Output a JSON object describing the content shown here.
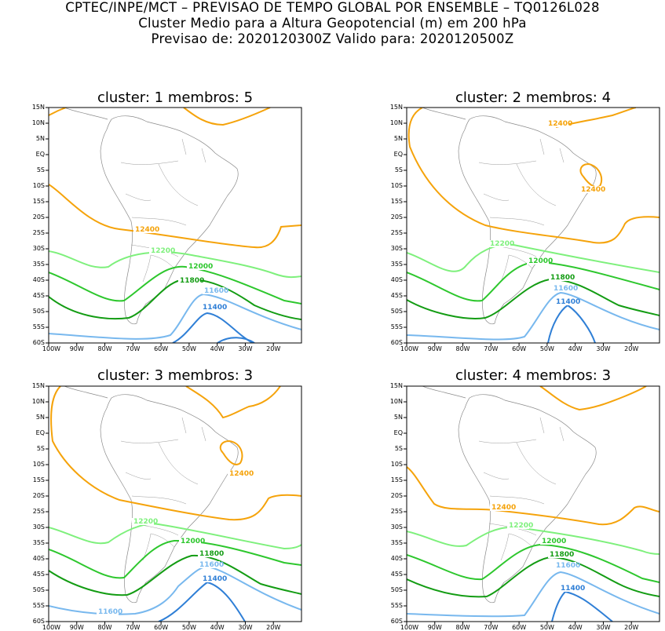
{
  "header": {
    "line1": "CPTEC/INPE/MCT – PREVISAO DE TEMPO GLOBAL POR ENSEMBLE – TQ0126L028",
    "line2": "Cluster Medio para a Altura Geopotencial (m) em 200 hPa",
    "line3": "Previsao de: 2020120300Z   Valido para: 2020120500Z"
  },
  "axes": {
    "lat_labels": [
      "15N",
      "10N",
      "5N",
      "EQ",
      "5S",
      "10S",
      "15S",
      "20S",
      "25S",
      "30S",
      "35S",
      "40S",
      "45S",
      "50S",
      "55S",
      "60S"
    ],
    "lon_labels": [
      "100W",
      "90W",
      "80W",
      "70W",
      "60W",
      "50W",
      "40W",
      "30W",
      "20W"
    ]
  },
  "colors": {
    "12400": "#f5a30b",
    "12200": "#7ef07c",
    "12000": "#2dc72d",
    "11800": "#139c13",
    "11600": "#78b8ee",
    "11400": "#2f7fd6"
  },
  "panels": [
    {
      "title": "cluster: 1   membros: 5",
      "contours": [
        {
          "level": "12400",
          "paths": [
            "M0,10 L12,4 L22,0",
            "M0,98 C20,110 50,150 90,155 C150,162 220,175 262,178 C280,180 290,170 296,152 L322,150",
            "M172,0 C185,10 200,22 222,22 C240,18 260,10 282,0"
          ],
          "labels": [
            {
              "text": "12400",
              "x": 110,
              "y": 158
            }
          ]
        },
        {
          "level": "12200",
          "paths": [
            "M0,183 C30,188 50,208 76,203 C100,185 140,180 182,188 C220,195 260,202 288,212 C305,218 315,216 322,215"
          ],
          "labels": [
            {
              "text": "12200",
              "x": 130,
              "y": 185
            }
          ]
        },
        {
          "level": "12000",
          "paths": [
            "M0,210 C40,225 70,250 96,246 C120,230 145,200 174,203 C210,208 250,225 300,246 L322,250"
          ],
          "labels": [
            {
              "text": "12000",
              "x": 178,
              "y": 205
            }
          ]
        },
        {
          "level": "11800",
          "paths": [
            "M0,241 C30,265 70,272 102,268 C125,260 145,225 168,220 C200,215 230,230 262,252 C285,262 305,268 322,270"
          ],
          "labels": [
            {
              "text": "11800",
              "x": 167,
              "y": 223
            }
          ]
        },
        {
          "level": "11600",
          "paths": [
            "M0,288 C60,292 125,300 155,290 C170,275 182,240 197,238 C225,240 258,265 322,283"
          ],
          "labels": [
            {
              "text": "11600",
              "x": 198,
              "y": 236
            }
          ]
        },
        {
          "level": "11400",
          "paths": [
            "M158,300 C178,290 190,264 202,262 C222,264 240,290 260,300",
            "M215,300 C230,290 250,292 262,300"
          ],
          "labels": [
            {
              "text": "11400",
              "x": 196,
              "y": 257
            }
          ]
        }
      ]
    },
    {
      "title": "cluster: 2   membros: 4",
      "contours": [
        {
          "level": "12400",
          "paths": [
            "M20,0 C5,8 0,25 4,50 C20,90 50,130 100,150 C140,160 200,165 238,172 C262,175 270,165 278,148 C284,140 300,138 322,140",
            "M190,25 C210,20 240,15 262,10 C280,4 290,0 292,0",
            "M225,88 C218,80 222,72 232,72 C245,75 252,90 246,100 C240,104 232,98 225,88"
          ],
          "labels": [
            {
              "text": "12400",
              "x": 180,
              "y": 23
            },
            {
              "text": "12400",
              "x": 222,
              "y": 107
            }
          ]
        },
        {
          "level": "12200",
          "paths": [
            "M0,185 C30,195 60,222 76,201 C90,185 110,173 136,175 C180,184 240,196 322,210"
          ],
          "labels": [
            {
              "text": "12200",
              "x": 106,
              "y": 176
            }
          ]
        },
        {
          "level": "12000",
          "paths": [
            "M0,210 C40,225 70,250 96,246 C115,230 135,195 170,197 C210,200 260,215 322,232"
          ],
          "labels": [
            {
              "text": "12000",
              "x": 155,
              "y": 198
            }
          ]
        },
        {
          "level": "11800",
          "paths": [
            "M0,245 C30,262 75,272 100,268 C125,260 150,225 182,219 C215,218 245,240 270,252 C290,258 310,262 322,265"
          ],
          "labels": [
            {
              "text": "11800",
              "x": 183,
              "y": 219
            }
          ]
        },
        {
          "level": "11600",
          "paths": [
            "M0,290 C60,292 125,300 150,292 C168,270 180,240 196,236 C220,238 258,268 322,283"
          ],
          "labels": [
            {
              "text": "11600",
              "x": 187,
              "y": 233
            }
          ]
        },
        {
          "level": "11400",
          "paths": [
            "M180,300 C185,275 196,258 205,252 C220,262 235,285 240,300"
          ],
          "labels": [
            {
              "text": "11400",
              "x": 190,
              "y": 250
            }
          ]
        }
      ]
    },
    {
      "title": "cluster: 3   membros: 3",
      "contours": [
        {
          "level": "12400",
          "paths": [
            "M15,0 C5,10 0,30 5,70 C20,100 50,130 90,145 C140,155 190,165 230,170 C262,172 270,160 280,143 C290,138 305,138 322,140",
            "M175,0 C190,10 210,20 222,40 C232,38 245,30 255,26 C270,24 285,15 295,0",
            "M222,85 C215,78 220,70 230,70 C245,72 250,88 244,98 C238,103 230,98 222,85"
          ],
          "labels": [
            {
              "text": "12400",
              "x": 230,
              "y": 114
            }
          ]
        },
        {
          "level": "12200",
          "paths": [
            "M0,180 C30,188 55,205 76,199 C95,185 120,173 140,176 C190,184 250,198 300,207 C310,207 318,205 322,202"
          ],
          "labels": [
            {
              "text": "12200",
              "x": 108,
              "y": 175
            }
          ]
        },
        {
          "level": "12000",
          "paths": [
            "M0,208 C40,222 70,248 96,244 C115,225 135,200 160,197 C200,196 250,210 300,225 L322,228"
          ],
          "labels": [
            {
              "text": "12000",
              "x": 168,
              "y": 200
            }
          ]
        },
        {
          "level": "11800",
          "paths": [
            "M0,235 C30,255 70,268 100,266 C125,258 150,225 182,216 C215,214 245,238 270,252 C290,258 310,262 322,265"
          ],
          "labels": [
            {
              "text": "11800",
              "x": 192,
              "y": 216
            }
          ]
        },
        {
          "level": "11600",
          "paths": [
            "M0,280 C40,290 80,292 110,290 C140,285 155,270 165,255 C180,242 190,232 200,230 C225,232 258,262 322,285"
          ],
          "labels": [
            {
              "text": "11600",
              "x": 192,
              "y": 230
            },
            {
              "text": "11600",
              "x": 63,
              "y": 290
            }
          ]
        },
        {
          "level": "11400",
          "paths": [
            "M140,300 C165,290 185,262 202,250 C222,255 238,280 250,300"
          ],
          "labels": [
            {
              "text": "11400",
              "x": 196,
              "y": 248
            }
          ]
        }
      ]
    },
    {
      "title": "cluster: 4   membros: 3",
      "contours": [
        {
          "level": "12400",
          "paths": [
            "M0,103 C10,110 20,130 35,150 C50,160 80,155 112,158 C150,162 200,168 245,176 C268,178 280,165 290,155 C300,150 310,158 322,160",
            "M170,0 C185,10 200,25 220,30 C240,28 260,20 275,14 C290,8 300,3 305,0"
          ],
          "labels": [
            {
              "text": "12400",
              "x": 108,
              "y": 157
            }
          ]
        },
        {
          "level": "12200",
          "paths": [
            "M0,185 C30,192 55,208 76,203 C95,190 115,178 140,180 C185,186 250,196 300,210 C310,214 318,214 322,214"
          ],
          "labels": [
            {
              "text": "12200",
              "x": 130,
              "y": 180
            }
          ]
        },
        {
          "level": "12000",
          "paths": [
            "M0,215 C40,228 70,248 96,246 C115,235 140,205 170,202 C210,203 250,220 300,245 L322,250"
          ],
          "labels": [
            {
              "text": "12000",
              "x": 172,
              "y": 200
            }
          ]
        },
        {
          "level": "11800",
          "paths": [
            "M0,246 C35,262 70,270 102,268 C125,258 150,225 182,218 C215,218 245,240 270,252 C290,262 310,266 322,268"
          ],
          "labels": [
            {
              "text": "11800",
              "x": 182,
              "y": 217
            }
          ]
        },
        {
          "level": "11600",
          "paths": [
            "M0,290 C50,292 110,295 150,292 C168,268 180,240 196,237 C220,240 258,270 322,290"
          ],
          "labels": [
            {
              "text": "11600",
              "x": 190,
              "y": 231
            }
          ]
        },
        {
          "level": "11400",
          "paths": [
            "M185,300 C190,280 196,268 202,262 C222,266 240,282 262,300"
          ],
          "labels": [
            {
              "text": "11400",
              "x": 196,
              "y": 260
            }
          ]
        }
      ]
    }
  ]
}
